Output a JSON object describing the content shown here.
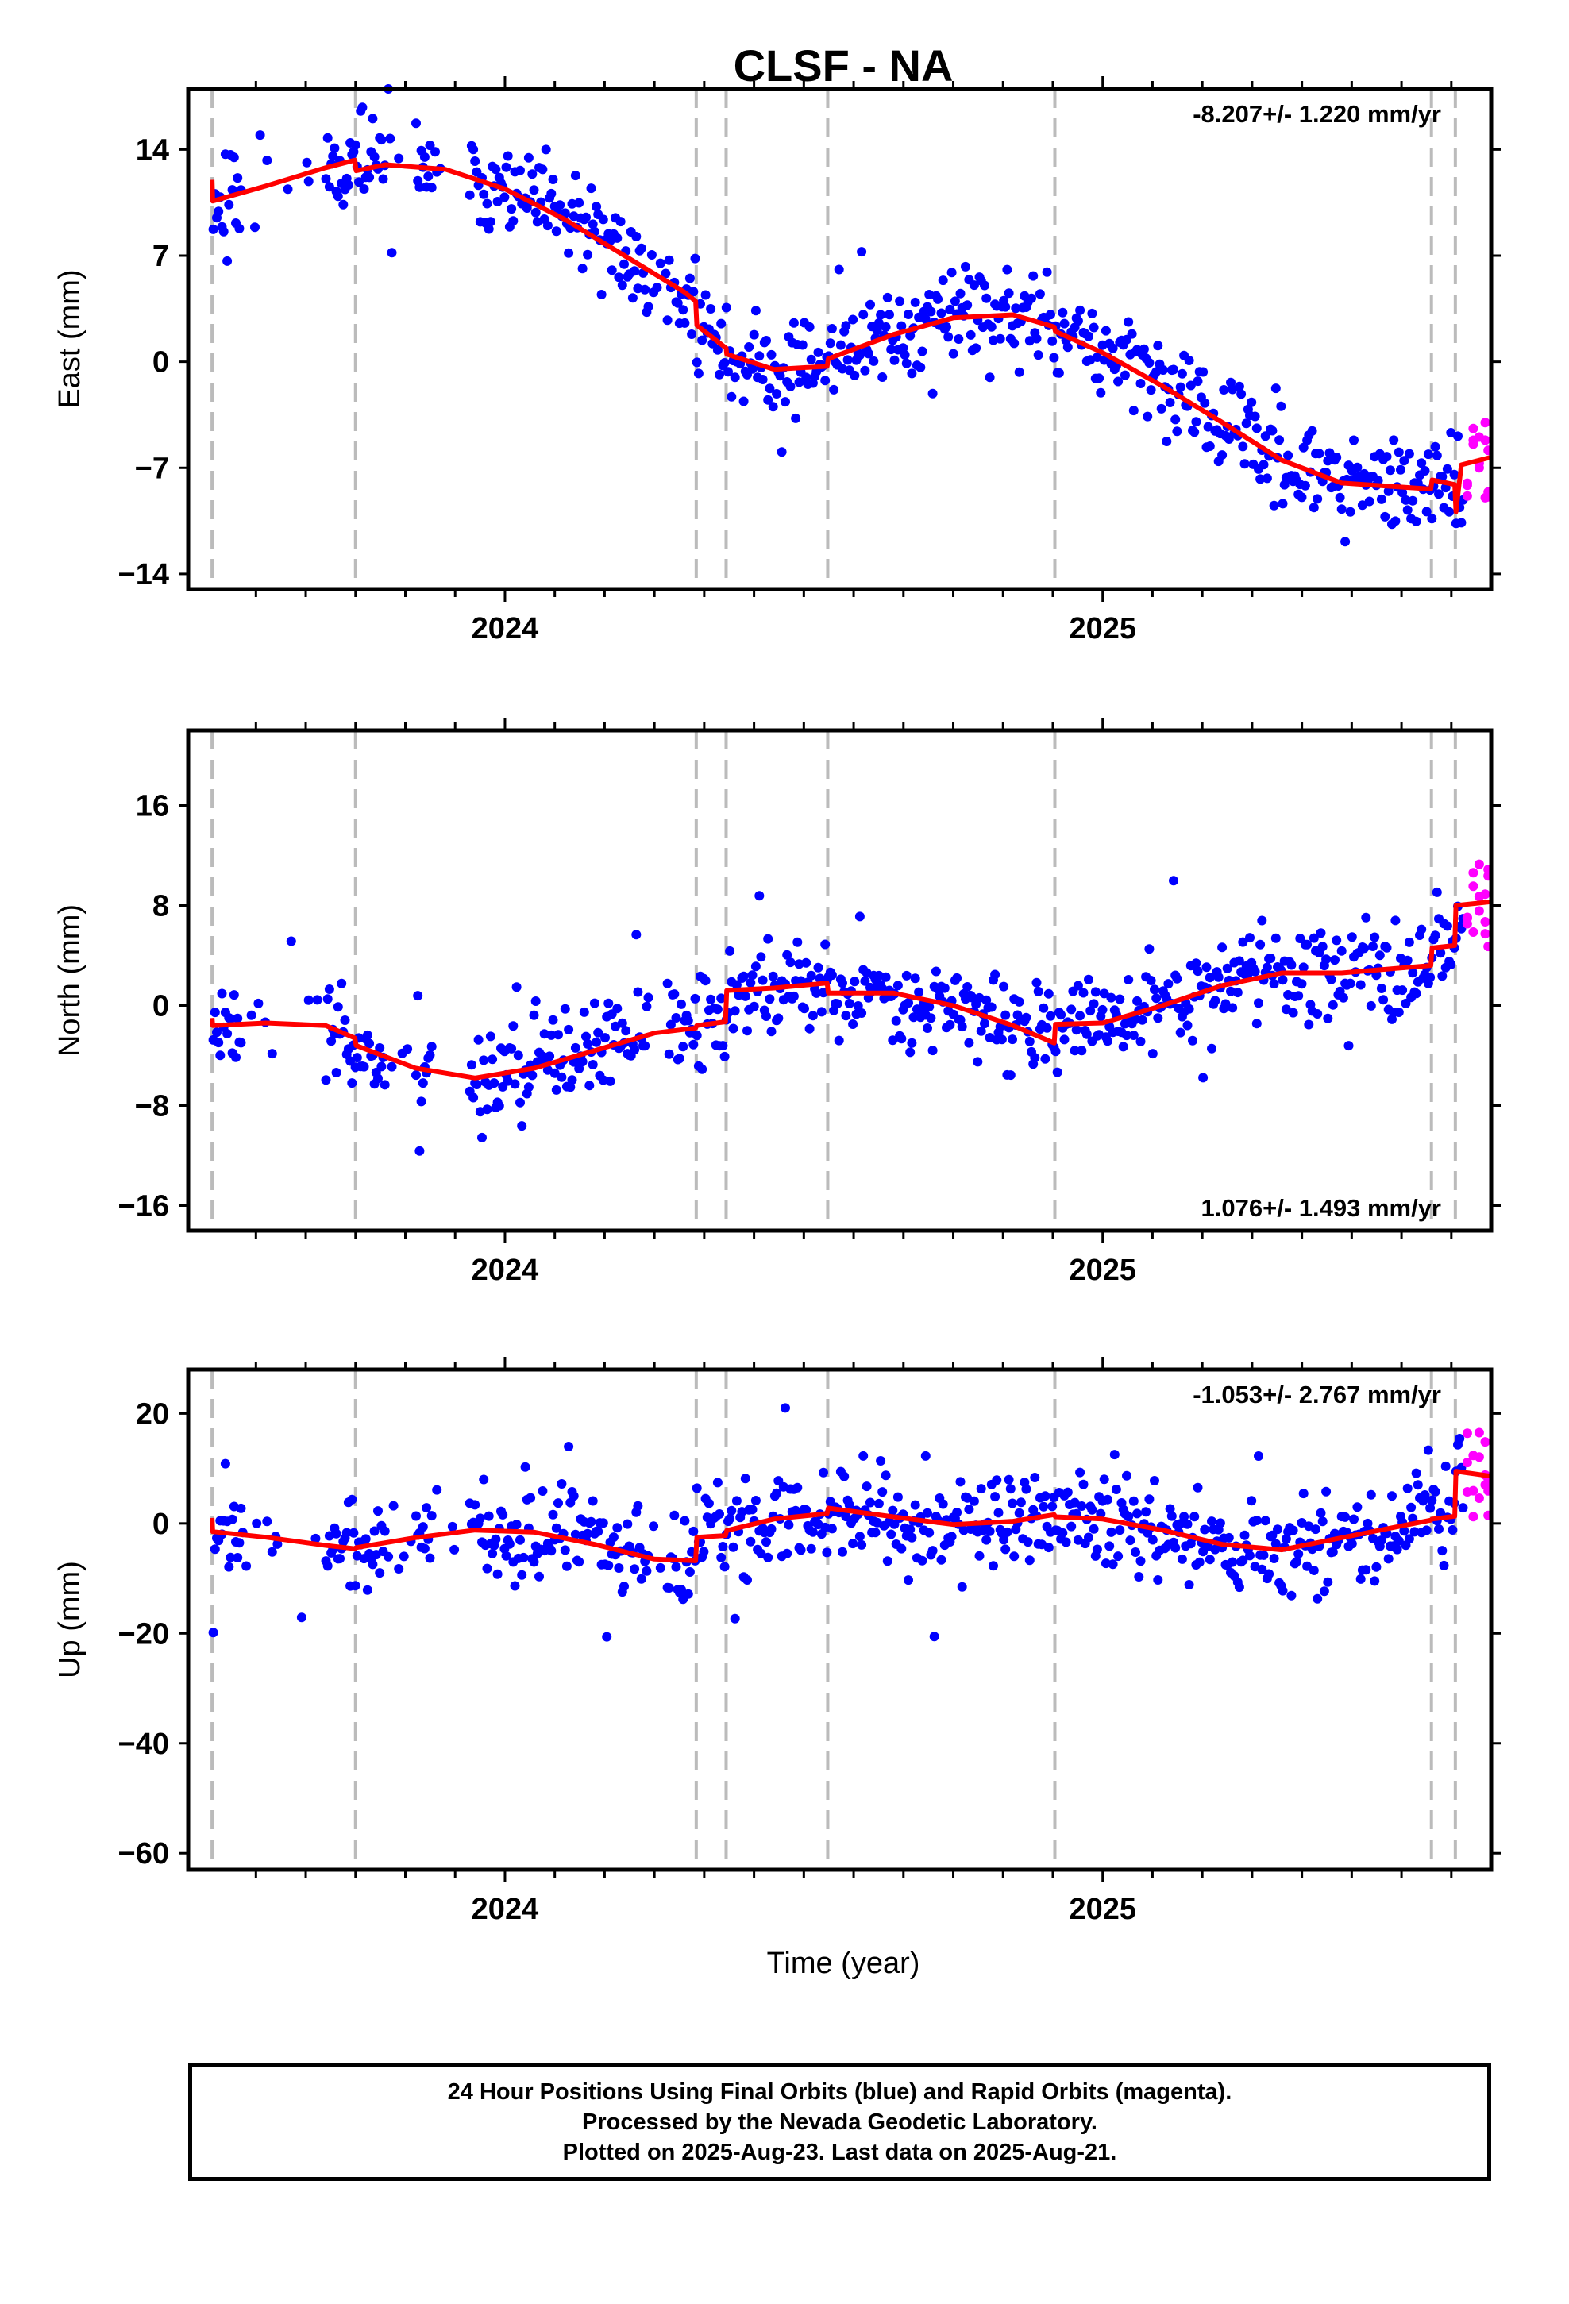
{
  "colors": {
    "final": "#0000ff",
    "rapid": "#ff00ff",
    "model": "#ff0000",
    "event_lines": "#bbbbbb"
  },
  "chart_data": {
    "type": "scatter",
    "title": "CLSF - NA",
    "xlabel": "Time (year)",
    "xlim": [
      2023.47,
      2025.65
    ],
    "x_ticks": [
      2024,
      2025
    ],
    "event_lines": [
      2023.51,
      2023.75,
      2024.32,
      2024.37,
      2024.54,
      2024.92,
      2025.55,
      2025.59
    ],
    "panels": [
      {
        "name": "east",
        "ylabel": "East (mm)",
        "ylim": [
          -15,
          18
        ],
        "yticks": [
          14,
          7,
          0,
          -7,
          -14
        ],
        "ytick_labels": [
          "14",
          "7",
          "0",
          "−7",
          "−14"
        ],
        "rate": "-8.207+/- 1.220 mm/yr",
        "rate_pos": "top-right",
        "model": [
          [
            2023.51,
            12.0
          ],
          [
            2023.511,
            10.6
          ],
          [
            2023.6,
            11.6
          ],
          [
            2023.7,
            12.8
          ],
          [
            2023.749,
            13.3
          ],
          [
            2023.751,
            12.6
          ],
          [
            2023.8,
            13.0
          ],
          [
            2023.9,
            12.7
          ],
          [
            2024.0,
            11.4
          ],
          [
            2024.1,
            9.4
          ],
          [
            2024.2,
            7.0
          ],
          [
            2024.3,
            4.6
          ],
          [
            2024.319,
            4.0
          ],
          [
            2024.321,
            2.4
          ],
          [
            2024.37,
            0.9
          ],
          [
            2024.371,
            0.5
          ],
          [
            2024.45,
            -0.5
          ],
          [
            2024.539,
            -0.3
          ],
          [
            2024.541,
            0.2
          ],
          [
            2024.65,
            1.8
          ],
          [
            2024.75,
            2.9
          ],
          [
            2024.85,
            3.1
          ],
          [
            2024.919,
            2.3
          ],
          [
            2024.921,
            2.0
          ],
          [
            2025.0,
            0.6
          ],
          [
            2025.1,
            -1.6
          ],
          [
            2025.2,
            -4.0
          ],
          [
            2025.3,
            -6.5
          ],
          [
            2025.4,
            -8.0
          ],
          [
            2025.549,
            -8.4
          ],
          [
            2025.551,
            -7.8
          ],
          [
            2025.589,
            -8.1
          ],
          [
            2025.591,
            -9.9
          ],
          [
            2025.6,
            -6.8
          ],
          [
            2025.65,
            -6.3
          ]
        ],
        "rapid_x": [
          2025.61,
          2025.62,
          2025.63,
          2025.64,
          2025.645
        ],
        "seed": 11
      },
      {
        "name": "north",
        "ylabel": "North (mm)",
        "ylim": [
          -18,
          22
        ],
        "yticks": [
          16,
          8,
          0,
          -8,
          -16
        ],
        "ytick_labels": [
          "16",
          "8",
          "0",
          "−8",
          "−16"
        ],
        "rate": "1.076+/- 1.493 mm/yr",
        "rate_pos": "bottom-right",
        "model": [
          [
            2023.51,
            -1.0
          ],
          [
            2023.511,
            -1.6
          ],
          [
            2023.6,
            -1.4
          ],
          [
            2023.7,
            -1.6
          ],
          [
            2023.749,
            -2.6
          ],
          [
            2023.751,
            -3.2
          ],
          [
            2023.85,
            -5.0
          ],
          [
            2023.95,
            -5.8
          ],
          [
            2024.05,
            -5.0
          ],
          [
            2024.15,
            -3.6
          ],
          [
            2024.25,
            -2.2
          ],
          [
            2024.319,
            -1.8
          ],
          [
            2024.321,
            -1.6
          ],
          [
            2024.369,
            -1.3
          ],
          [
            2024.371,
            1.2
          ],
          [
            2024.45,
            1.4
          ],
          [
            2024.539,
            1.8
          ],
          [
            2024.541,
            1.0
          ],
          [
            2024.65,
            1.0
          ],
          [
            2024.75,
            0.0
          ],
          [
            2024.85,
            -1.6
          ],
          [
            2024.919,
            -3.0
          ],
          [
            2024.921,
            -1.5
          ],
          [
            2025.0,
            -1.4
          ],
          [
            2025.1,
            0.0
          ],
          [
            2025.2,
            1.6
          ],
          [
            2025.3,
            2.6
          ],
          [
            2025.4,
            2.6
          ],
          [
            2025.549,
            3.2
          ],
          [
            2025.551,
            4.6
          ],
          [
            2025.589,
            4.8
          ],
          [
            2025.591,
            8.0
          ],
          [
            2025.65,
            8.3
          ]
        ],
        "rapid_x": [
          2025.61,
          2025.62,
          2025.63,
          2025.64,
          2025.645
        ],
        "seed": 23
      },
      {
        "name": "up",
        "ylabel": "Up (mm)",
        "ylim": [
          -63,
          28
        ],
        "yticks": [
          20,
          0,
          -20,
          -40,
          -60
        ],
        "ytick_labels": [
          "20",
          "0",
          "−20",
          "−40",
          "−60"
        ],
        "rate": "-1.053+/- 2.767 mm/yr",
        "rate_pos": "top-right",
        "model": [
          [
            2023.51,
            1.0
          ],
          [
            2023.511,
            -1.5
          ],
          [
            2023.6,
            -2.5
          ],
          [
            2023.7,
            -4.0
          ],
          [
            2023.749,
            -4.6
          ],
          [
            2023.751,
            -4.4
          ],
          [
            2023.85,
            -2.6
          ],
          [
            2023.95,
            -1.2
          ],
          [
            2024.05,
            -1.6
          ],
          [
            2024.15,
            -3.8
          ],
          [
            2024.25,
            -6.5
          ],
          [
            2024.319,
            -6.8
          ],
          [
            2024.321,
            -2.5
          ],
          [
            2024.369,
            -2.2
          ],
          [
            2024.371,
            -1.3
          ],
          [
            2024.45,
            0.8
          ],
          [
            2024.539,
            1.8
          ],
          [
            2024.541,
            2.8
          ],
          [
            2024.65,
            1.2
          ],
          [
            2024.75,
            -0.2
          ],
          [
            2024.85,
            0.4
          ],
          [
            2024.919,
            1.6
          ],
          [
            2024.921,
            1.2
          ],
          [
            2025.0,
            0.8
          ],
          [
            2025.1,
            -1.2
          ],
          [
            2025.2,
            -3.8
          ],
          [
            2025.3,
            -4.8
          ],
          [
            2025.4,
            -2.6
          ],
          [
            2025.549,
            0.6
          ],
          [
            2025.551,
            0.8
          ],
          [
            2025.589,
            1.3
          ],
          [
            2025.591,
            9.5
          ],
          [
            2025.65,
            8.6
          ]
        ],
        "rapid_x": [
          2025.61,
          2025.62,
          2025.63,
          2025.64,
          2025.645
        ],
        "seed": 37
      }
    ]
  },
  "footer": {
    "line1": "24 Hour Positions Using Final Orbits (blue) and Rapid Orbits (magenta).",
    "line2": "Processed by the Nevada Geodetic Laboratory.",
    "line3": "Plotted on 2025-Aug-23. Last data on 2025-Aug-21."
  }
}
